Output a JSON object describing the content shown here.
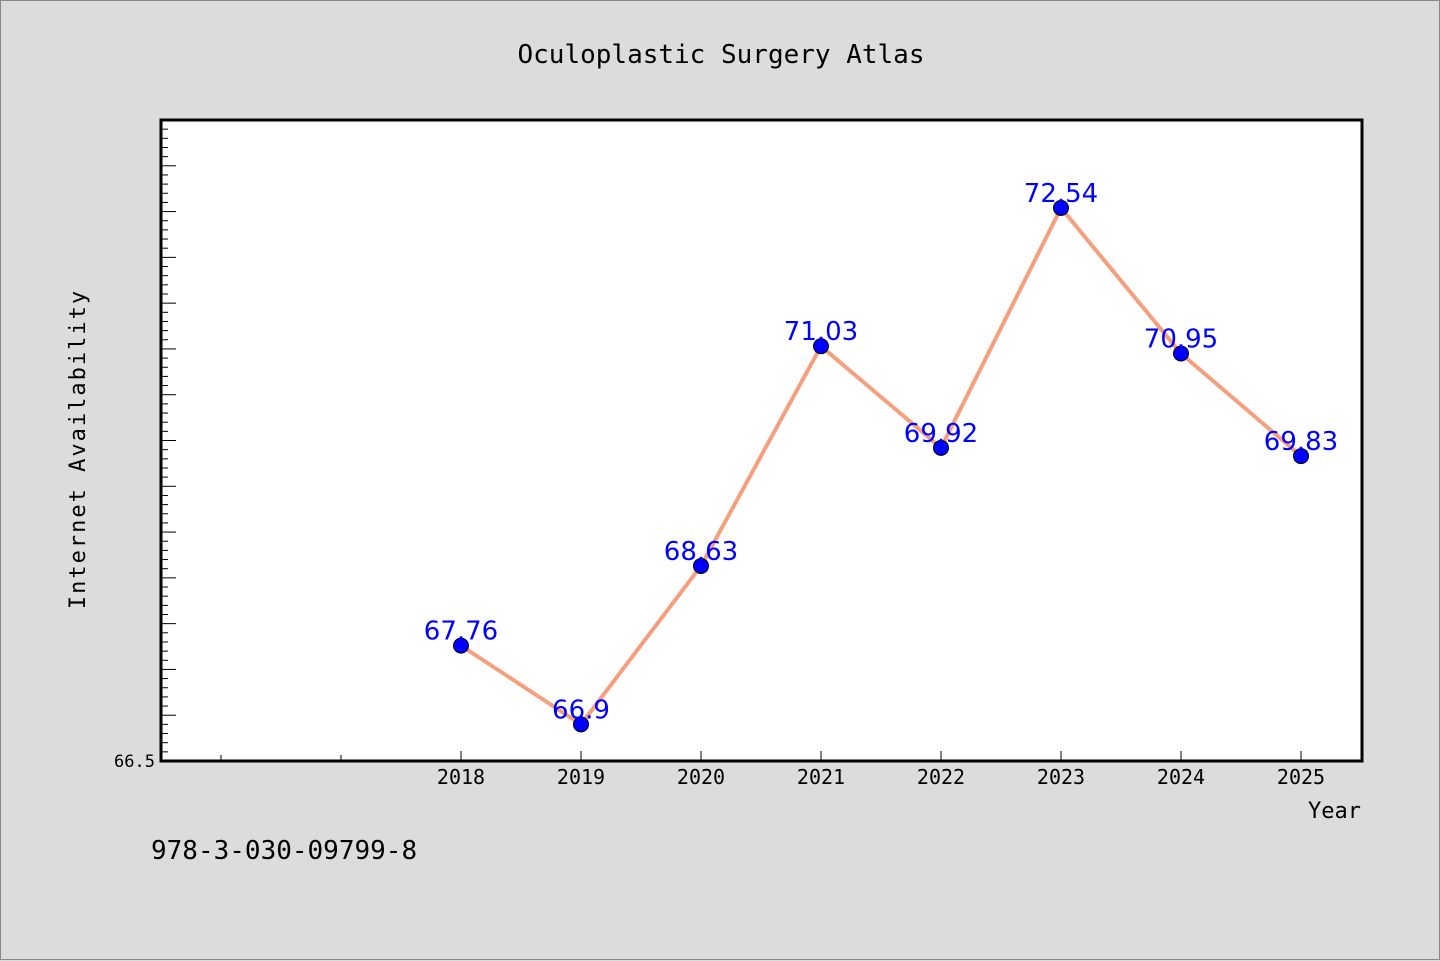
{
  "chart_data": {
    "type": "line",
    "title": "Oculoplastic Surgery Atlas",
    "xlabel": "Year",
    "ylabel": "Internet Availability",
    "categories": [
      "2018",
      "2019",
      "2020",
      "2021",
      "2022",
      "2023",
      "2024",
      "2025"
    ],
    "series": [
      {
        "values": [
          67.76,
          66.9,
          68.63,
          71.03,
          69.92,
          72.54,
          70.95,
          69.83
        ],
        "labels": [
          "67.76",
          "66.9",
          "68.63",
          "71.03",
          "69.92",
          "72.54",
          "70.95",
          "69.83"
        ]
      }
    ],
    "ylim": [
      66.5,
      73.5
    ],
    "y_tick_labels": [
      "66.5"
    ],
    "grid": false,
    "line_color": "#f4a07f",
    "marker_color": "#0000ff",
    "label_color": "#0000ff"
  },
  "footer": {
    "isbn": "978-3-030-09799-8"
  }
}
